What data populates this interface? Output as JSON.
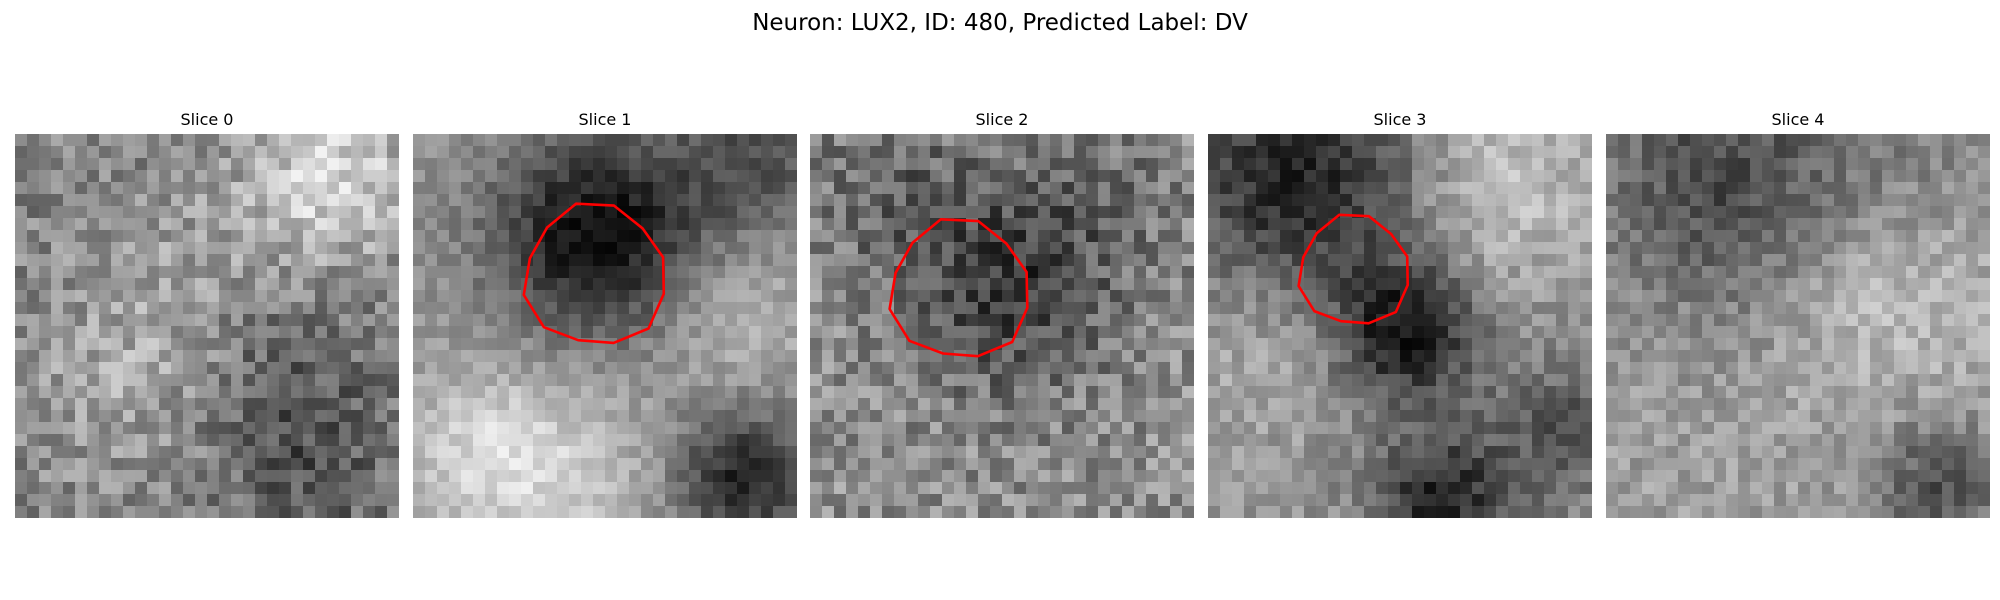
{
  "figure": {
    "title": "Neuron: LUX2, ID: 480, Predicted Label: DV"
  },
  "panels": [
    {
      "title": "Slice 0",
      "has_contour": false
    },
    {
      "title": "Slice 1",
      "has_contour": true
    },
    {
      "title": "Slice 2",
      "has_contour": true
    },
    {
      "title": "Slice 3",
      "has_contour": true
    },
    {
      "title": "Slice 4",
      "has_contour": false
    }
  ],
  "colors": {
    "contour": "#ff0000",
    "background": "#ffffff"
  }
}
